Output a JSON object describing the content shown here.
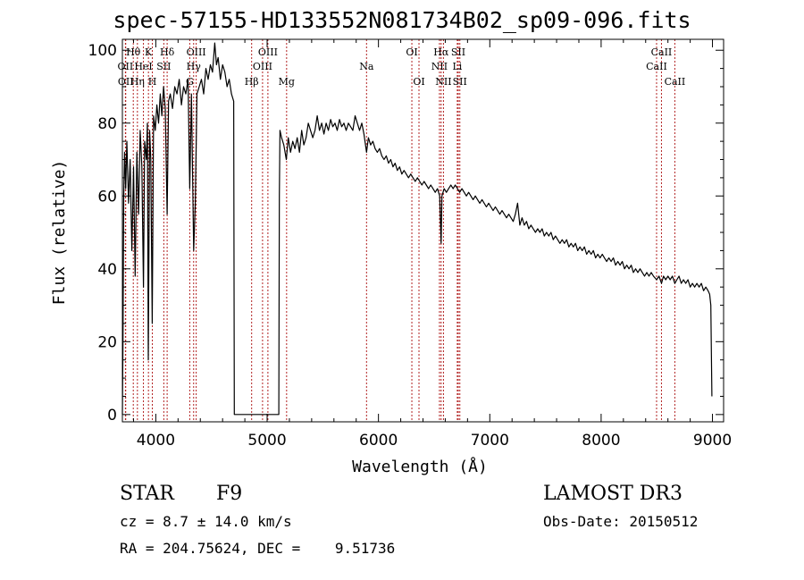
{
  "title": "spec-57155-HD133552N081734B02_sp09-096.fits",
  "info": {
    "object_class": "STAR",
    "subclass": "F9",
    "survey": "LAMOST DR3",
    "cz": "cz = 8.7 ± 14.0 km/s",
    "obs_date": "Obs-Date: 20150512",
    "radec": "RA = 204.75624, DEC =    9.51736"
  },
  "chart_data": {
    "type": "line",
    "xlabel": "Wavelength (Å)",
    "ylabel": "Flux (relative)",
    "xlim": [
      3700,
      9100
    ],
    "ylim": [
      -2,
      103
    ],
    "xticks": [
      4000,
      5000,
      6000,
      7000,
      8000,
      9000
    ],
    "yticks": [
      0,
      20,
      40,
      60,
      80,
      100
    ],
    "line_color": "#000000",
    "marker_color": "#b22222",
    "series": [
      {
        "points": [
          [
            3700,
            0
          ],
          [
            3705,
            18
          ],
          [
            3712,
            60
          ],
          [
            3720,
            72
          ],
          [
            3730,
            62
          ],
          [
            3740,
            75
          ],
          [
            3755,
            58
          ],
          [
            3770,
            70
          ],
          [
            3785,
            45
          ],
          [
            3800,
            68
          ],
          [
            3815,
            38
          ],
          [
            3830,
            72
          ],
          [
            3845,
            55
          ],
          [
            3860,
            78
          ],
          [
            3875,
            68
          ],
          [
            3889,
            35
          ],
          [
            3900,
            75
          ],
          [
            3915,
            70
          ],
          [
            3925,
            80
          ],
          [
            3933,
            15
          ],
          [
            3945,
            78
          ],
          [
            3955,
            70
          ],
          [
            3968,
            25
          ],
          [
            3980,
            82
          ],
          [
            3995,
            78
          ],
          [
            4010,
            85
          ],
          [
            4025,
            80
          ],
          [
            4040,
            88
          ],
          [
            4055,
            82
          ],
          [
            4070,
            90
          ],
          [
            4085,
            84
          ],
          [
            4102,
            55
          ],
          [
            4115,
            86
          ],
          [
            4130,
            88
          ],
          [
            4150,
            84
          ],
          [
            4170,
            90
          ],
          [
            4190,
            88
          ],
          [
            4210,
            92
          ],
          [
            4230,
            85
          ],
          [
            4250,
            90
          ],
          [
            4270,
            88
          ],
          [
            4290,
            92
          ],
          [
            4305,
            62
          ],
          [
            4320,
            88
          ],
          [
            4340,
            45
          ],
          [
            4355,
            58
          ],
          [
            4370,
            88
          ],
          [
            4390,
            90
          ],
          [
            4410,
            92
          ],
          [
            4430,
            88
          ],
          [
            4450,
            95
          ],
          [
            4470,
            92
          ],
          [
            4490,
            96
          ],
          [
            4510,
            94
          ],
          [
            4530,
            102
          ],
          [
            4545,
            96
          ],
          [
            4560,
            98
          ],
          [
            4580,
            92
          ],
          [
            4600,
            96
          ],
          [
            4620,
            94
          ],
          [
            4640,
            90
          ],
          [
            4660,
            92
          ],
          [
            4680,
            88
          ],
          [
            4700,
            86
          ],
          [
            4705,
            0
          ],
          [
            4710,
            0
          ],
          [
            5100,
            0
          ],
          [
            5105,
            0
          ],
          [
            5110,
            60
          ],
          [
            5115,
            78
          ],
          [
            5130,
            76
          ],
          [
            5150,
            74
          ],
          [
            5172,
            70
          ],
          [
            5190,
            76
          ],
          [
            5210,
            72
          ],
          [
            5230,
            75
          ],
          [
            5250,
            73
          ],
          [
            5270,
            76
          ],
          [
            5290,
            72
          ],
          [
            5310,
            78
          ],
          [
            5330,
            74
          ],
          [
            5350,
            76
          ],
          [
            5370,
            80
          ],
          [
            5390,
            78
          ],
          [
            5410,
            76
          ],
          [
            5430,
            78
          ],
          [
            5450,
            82
          ],
          [
            5470,
            78
          ],
          [
            5490,
            80
          ],
          [
            5510,
            77
          ],
          [
            5530,
            80
          ],
          [
            5550,
            78
          ],
          [
            5570,
            81
          ],
          [
            5590,
            79
          ],
          [
            5610,
            80
          ],
          [
            5630,
            78
          ],
          [
            5650,
            81
          ],
          [
            5670,
            79
          ],
          [
            5690,
            80
          ],
          [
            5710,
            78
          ],
          [
            5730,
            80
          ],
          [
            5750,
            79
          ],
          [
            5770,
            78
          ],
          [
            5790,
            82
          ],
          [
            5810,
            80
          ],
          [
            5830,
            78
          ],
          [
            5850,
            80
          ],
          [
            5870,
            77
          ],
          [
            5893,
            72
          ],
          [
            5910,
            76
          ],
          [
            5930,
            74
          ],
          [
            5950,
            75
          ],
          [
            5970,
            73
          ],
          [
            5990,
            72
          ],
          [
            6010,
            73
          ],
          [
            6030,
            71
          ],
          [
            6050,
            70
          ],
          [
            6070,
            71
          ],
          [
            6090,
            69
          ],
          [
            6110,
            70
          ],
          [
            6130,
            68
          ],
          [
            6150,
            69
          ],
          [
            6170,
            67
          ],
          [
            6190,
            68
          ],
          [
            6210,
            66
          ],
          [
            6230,
            67
          ],
          [
            6250,
            66
          ],
          [
            6270,
            65
          ],
          [
            6290,
            66
          ],
          [
            6310,
            65
          ],
          [
            6330,
            64
          ],
          [
            6350,
            65
          ],
          [
            6370,
            64
          ],
          [
            6390,
            63
          ],
          [
            6410,
            64
          ],
          [
            6430,
            63
          ],
          [
            6450,
            62
          ],
          [
            6470,
            63
          ],
          [
            6490,
            62
          ],
          [
            6510,
            61
          ],
          [
            6530,
            62
          ],
          [
            6550,
            60
          ],
          [
            6563,
            47
          ],
          [
            6570,
            60
          ],
          [
            6590,
            62
          ],
          [
            6610,
            61
          ],
          [
            6630,
            62
          ],
          [
            6650,
            63
          ],
          [
            6670,
            62
          ],
          [
            6690,
            63
          ],
          [
            6710,
            62
          ],
          [
            6730,
            61
          ],
          [
            6750,
            62
          ],
          [
            6770,
            61
          ],
          [
            6790,
            60
          ],
          [
            6810,
            61
          ],
          [
            6830,
            60
          ],
          [
            6850,
            59
          ],
          [
            6870,
            60
          ],
          [
            6890,
            59
          ],
          [
            6910,
            58
          ],
          [
            6930,
            59
          ],
          [
            6950,
            58
          ],
          [
            6970,
            57
          ],
          [
            6990,
            58
          ],
          [
            7010,
            57
          ],
          [
            7030,
            56
          ],
          [
            7050,
            57
          ],
          [
            7070,
            56
          ],
          [
            7090,
            55
          ],
          [
            7110,
            56
          ],
          [
            7130,
            55
          ],
          [
            7150,
            54
          ],
          [
            7170,
            55
          ],
          [
            7190,
            54
          ],
          [
            7210,
            53
          ],
          [
            7230,
            55
          ],
          [
            7250,
            58
          ],
          [
            7270,
            52
          ],
          [
            7290,
            54
          ],
          [
            7310,
            52
          ],
          [
            7330,
            53
          ],
          [
            7350,
            51
          ],
          [
            7370,
            52
          ],
          [
            7390,
            51
          ],
          [
            7410,
            50
          ],
          [
            7430,
            51
          ],
          [
            7450,
            50
          ],
          [
            7470,
            51
          ],
          [
            7490,
            49
          ],
          [
            7510,
            50
          ],
          [
            7530,
            49
          ],
          [
            7550,
            50
          ],
          [
            7570,
            48
          ],
          [
            7590,
            49
          ],
          [
            7610,
            48
          ],
          [
            7630,
            47
          ],
          [
            7650,
            48
          ],
          [
            7670,
            47
          ],
          [
            7690,
            48
          ],
          [
            7710,
            46
          ],
          [
            7730,
            47
          ],
          [
            7750,
            46
          ],
          [
            7770,
            47
          ],
          [
            7790,
            45
          ],
          [
            7810,
            46
          ],
          [
            7830,
            45
          ],
          [
            7850,
            46
          ],
          [
            7870,
            44
          ],
          [
            7890,
            45
          ],
          [
            7910,
            44
          ],
          [
            7930,
            45
          ],
          [
            7950,
            43
          ],
          [
            7970,
            44
          ],
          [
            7990,
            43
          ],
          [
            8010,
            44
          ],
          [
            8030,
            43
          ],
          [
            8050,
            42
          ],
          [
            8070,
            43
          ],
          [
            8090,
            42
          ],
          [
            8110,
            43
          ],
          [
            8130,
            41
          ],
          [
            8150,
            42
          ],
          [
            8170,
            41
          ],
          [
            8190,
            42
          ],
          [
            8210,
            40
          ],
          [
            8230,
            41
          ],
          [
            8250,
            40
          ],
          [
            8270,
            41
          ],
          [
            8290,
            39
          ],
          [
            8310,
            40
          ],
          [
            8330,
            39
          ],
          [
            8350,
            40
          ],
          [
            8370,
            39
          ],
          [
            8390,
            38
          ],
          [
            8410,
            39
          ],
          [
            8430,
            38
          ],
          [
            8450,
            39
          ],
          [
            8470,
            38
          ],
          [
            8498,
            37
          ],
          [
            8520,
            38
          ],
          [
            8542,
            36
          ],
          [
            8560,
            38
          ],
          [
            8580,
            37
          ],
          [
            8600,
            38
          ],
          [
            8620,
            37
          ],
          [
            8640,
            38
          ],
          [
            8662,
            36
          ],
          [
            8680,
            37
          ],
          [
            8700,
            38
          ],
          [
            8720,
            36
          ],
          [
            8740,
            37
          ],
          [
            8760,
            36
          ],
          [
            8780,
            37
          ],
          [
            8800,
            35
          ],
          [
            8820,
            36
          ],
          [
            8840,
            35
          ],
          [
            8860,
            36
          ],
          [
            8880,
            35
          ],
          [
            8900,
            36
          ],
          [
            8920,
            34
          ],
          [
            8940,
            35
          ],
          [
            8960,
            34
          ],
          [
            8975,
            33
          ],
          [
            8985,
            30
          ],
          [
            8995,
            5
          ]
        ]
      }
    ],
    "lines": [
      {
        "label": "Hθ",
        "x": 3798,
        "row": 1
      },
      {
        "label": "OII",
        "x": 3727,
        "row": 2
      },
      {
        "label": "OII",
        "x": 3730,
        "row": 3
      },
      {
        "label": "Hη",
        "x": 3835,
        "row": 3
      },
      {
        "label": "HeI",
        "x": 3889,
        "row": 2
      },
      {
        "label": "K",
        "x": 3934,
        "row": 1
      },
      {
        "label": "H",
        "x": 3969,
        "row": 3
      },
      {
        "label": "SII",
        "x": 4072,
        "row": 2
      },
      {
        "label": "Hδ",
        "x": 4102,
        "row": 1
      },
      {
        "label": "OIII",
        "x": 4363,
        "row": 1
      },
      {
        "label": "Hγ",
        "x": 4340,
        "row": 2
      },
      {
        "label": "G",
        "x": 4305,
        "row": 3
      },
      {
        "label": "Hβ",
        "x": 4861,
        "row": 3
      },
      {
        "label": "OIII",
        "x": 4959,
        "row": 2
      },
      {
        "label": "OIII",
        "x": 5007,
        "row": 1
      },
      {
        "label": "Mg",
        "x": 5175,
        "row": 3
      },
      {
        "label": "Na",
        "x": 5893,
        "row": 2
      },
      {
        "label": "OI",
        "x": 6300,
        "row": 1
      },
      {
        "label": "OI",
        "x": 6364,
        "row": 3
      },
      {
        "label": "Hα",
        "x": 6563,
        "row": 1
      },
      {
        "label": "NII",
        "x": 6548,
        "row": 2
      },
      {
        "label": "NII",
        "x": 6584,
        "row": 3
      },
      {
        "label": "SII",
        "x": 6717,
        "row": 1
      },
      {
        "label": "Li",
        "x": 6708,
        "row": 2
      },
      {
        "label": "SII",
        "x": 6731,
        "row": 3
      },
      {
        "label": "CaII",
        "x": 8542,
        "row": 1
      },
      {
        "label": "CaII",
        "x": 8498,
        "row": 2
      },
      {
        "label": "CaII",
        "x": 8662,
        "row": 3
      }
    ]
  }
}
